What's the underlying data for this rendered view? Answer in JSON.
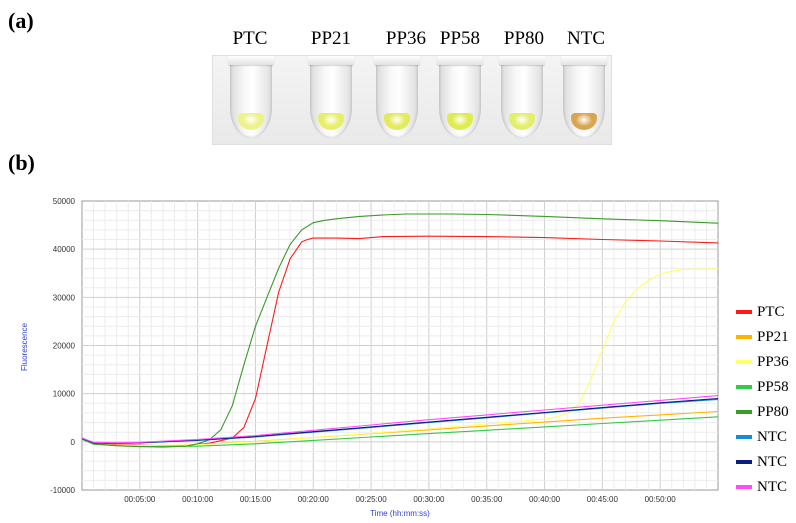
{
  "panel_a": {
    "label": "(a)",
    "tubes": [
      {
        "label": "PTC",
        "color": "#eef28a"
      },
      {
        "label": "PP21",
        "color": "#e8ee6a"
      },
      {
        "label": "PP36",
        "color": "#e4ea5e"
      },
      {
        "label": "PP58",
        "color": "#dfeb4e"
      },
      {
        "label": "PP80",
        "color": "#e3ee6c"
      },
      {
        "label": "NTC",
        "color": "#d8a552"
      }
    ]
  },
  "panel_b": {
    "label": "(b)"
  },
  "chart_data": {
    "type": "line",
    "xlabel": "Time (hh:mm:ss)",
    "ylabel": "Fluorescence",
    "xlim": [
      0,
      55
    ],
    "ylim": [
      -10000,
      50000
    ],
    "x_ticks": [
      "00:05:00",
      "00:10:00",
      "00:15:00",
      "00:20:00",
      "00:25:00",
      "00:30:00",
      "00:35:00",
      "00:40:00",
      "00:45:00",
      "00:50:00"
    ],
    "y_ticks": [
      "50000",
      "40000",
      "30000",
      "20000",
      "10000",
      "0",
      "-10000"
    ],
    "grid": true,
    "legend_position": "right",
    "series": [
      {
        "name": "PTC",
        "color": "#ff1a1a",
        "x": [
          0,
          1,
          3,
          5,
          7,
          9,
          11,
          13,
          14,
          15,
          16,
          17,
          18,
          19,
          19.5,
          20,
          20.5,
          22,
          24,
          26,
          30,
          35,
          40,
          45,
          50,
          55
        ],
        "y": [
          800,
          -300,
          -600,
          -700,
          -800,
          -700,
          -300,
          800,
          3000,
          9000,
          20000,
          31000,
          38000,
          41500,
          42000,
          42300,
          42300,
          42300,
          42200,
          42600,
          42700,
          42600,
          42400,
          42000,
          41700,
          41300
        ]
      },
      {
        "name": "PP21",
        "color": "#ffb400",
        "x": [
          0,
          1,
          3,
          5,
          10,
          15,
          20,
          25,
          30,
          35,
          40,
          45,
          50,
          55
        ],
        "y": [
          600,
          -400,
          -700,
          -800,
          -600,
          100,
          900,
          1700,
          2500,
          3300,
          4100,
          4900,
          5600,
          6300
        ]
      },
      {
        "name": "PP36",
        "color": "#ffff66",
        "x": [
          0,
          1,
          3,
          5,
          10,
          15,
          20,
          25,
          30,
          35,
          40,
          41,
          42,
          43,
          44,
          45,
          46,
          47,
          48,
          49,
          50,
          51,
          52,
          55
        ],
        "y": [
          600,
          -400,
          -700,
          -800,
          -600,
          0,
          900,
          1800,
          2700,
          3700,
          4700,
          5200,
          5900,
          8000,
          13000,
          19000,
          25000,
          29000,
          31800,
          33500,
          34800,
          35400,
          35800,
          35900
        ]
      },
      {
        "name": "PP58",
        "color": "#33c94a",
        "x": [
          0,
          1,
          3,
          5,
          10,
          15,
          20,
          25,
          30,
          35,
          40,
          45,
          50,
          55
        ],
        "y": [
          500,
          -500,
          -800,
          -1000,
          -900,
          -400,
          300,
          1000,
          1700,
          2400,
          3100,
          3800,
          4500,
          5200
        ]
      },
      {
        "name": "PP80",
        "color": "#3a9a2a",
        "x": [
          0,
          1,
          3,
          5,
          7,
          9,
          10,
          11,
          12,
          13,
          14,
          15,
          16,
          17,
          18,
          19,
          20,
          21,
          22,
          24,
          26,
          28,
          30,
          32,
          35,
          40,
          45,
          50,
          55
        ],
        "y": [
          700,
          -400,
          -800,
          -1000,
          -1100,
          -900,
          -400,
          400,
          2500,
          7500,
          16000,
          24000,
          30000,
          36000,
          41000,
          44000,
          45500,
          46000,
          46300,
          46800,
          47100,
          47300,
          47300,
          47300,
          47200,
          46800,
          46300,
          45900,
          45400
        ]
      },
      {
        "name": "NTC",
        "color": "#1a8ad4",
        "x": [
          0,
          1,
          3,
          5,
          10,
          15,
          20,
          25,
          30,
          35,
          40,
          45,
          50,
          55
        ],
        "y": [
          800,
          -200,
          -300,
          -200,
          300,
          1000,
          2000,
          3000,
          4000,
          5000,
          6000,
          7000,
          8000,
          8800
        ]
      },
      {
        "name": "NTC",
        "color": "#0a1e7a",
        "x": [
          0,
          1,
          3,
          5,
          10,
          15,
          20,
          25,
          30,
          35,
          40,
          45,
          50,
          55
        ],
        "y": [
          700,
          -200,
          -300,
          -200,
          350,
          1100,
          2100,
          3100,
          4100,
          5100,
          6100,
          7100,
          8100,
          9000
        ]
      },
      {
        "name": "NTC",
        "color": "#ff4cff",
        "x": [
          0,
          1,
          3,
          5,
          10,
          15,
          20,
          25,
          30,
          35,
          40,
          45,
          50,
          55
        ],
        "y": [
          800,
          -100,
          -200,
          -100,
          500,
          1300,
          2400,
          3500,
          4600,
          5600,
          6600,
          7600,
          8600,
          9600
        ]
      }
    ]
  }
}
